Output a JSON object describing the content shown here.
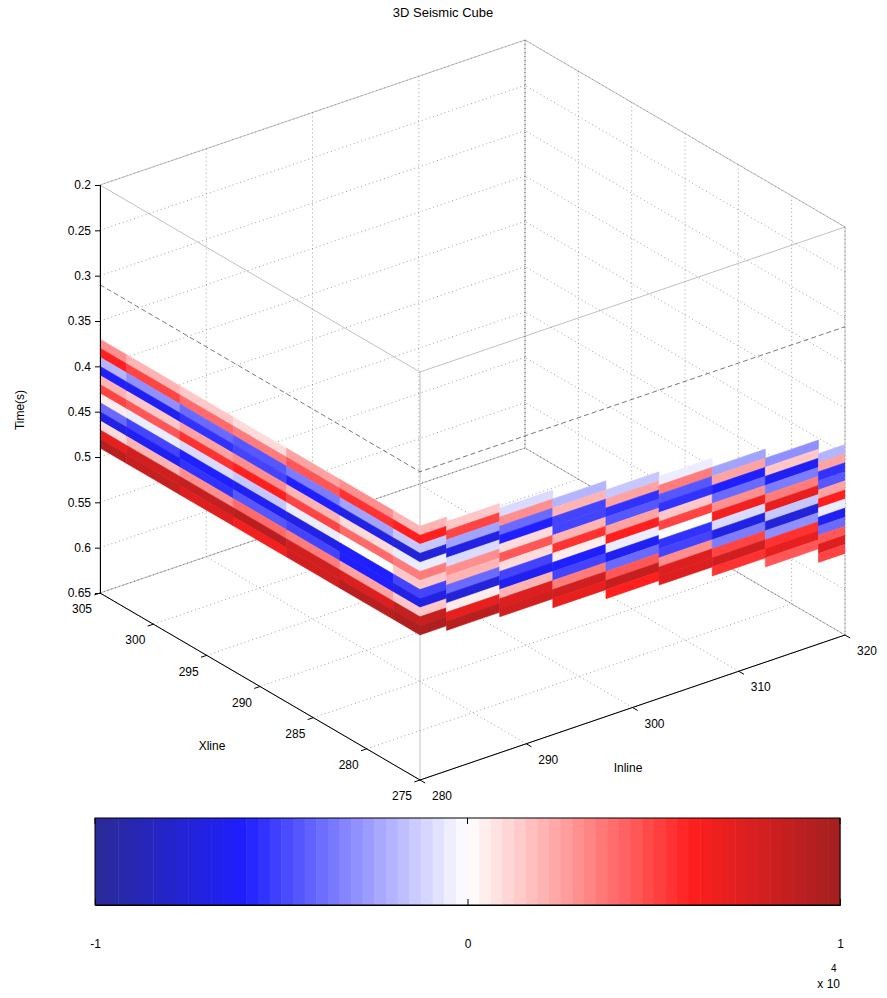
{
  "chart_data": {
    "type": "seismic_cube",
    "title": "3D Seismic Cube",
    "xlabel": "Xline",
    "ylabel": "Inline",
    "zlabel": "Time(s)",
    "xlim": [
      275,
      305
    ],
    "xticks": [
      275,
      280,
      285,
      290,
      295,
      300,
      305
    ],
    "ylim": [
      280,
      320
    ],
    "yticks": [
      280,
      290,
      300,
      310,
      320
    ],
    "zlim": [
      0.2,
      0.65
    ],
    "zticks": [
      0.2,
      0.25,
      0.3,
      0.35,
      0.4,
      0.45,
      0.5,
      0.55,
      0.6,
      0.65
    ],
    "grid": true,
    "slice_time": 0.31,
    "sample_interval": 0.01,
    "traces": [
      {
        "xline": 305,
        "inline": 280,
        "t_start": 0.37,
        "values": [
          3000,
          6000,
          -2000,
          -6000,
          2000,
          5000,
          500,
          -4000,
          -7000,
          1000,
          7000,
          9000
        ]
      },
      {
        "xline": 300,
        "inline": 280,
        "t_start": 0.37,
        "values": [
          2000,
          5000,
          -3000,
          -6500,
          1500,
          4500,
          -500,
          -5000,
          -6500,
          2000,
          8000,
          8500
        ]
      },
      {
        "xline": 295,
        "inline": 280,
        "t_start": 0.37,
        "values": [
          1500,
          4000,
          -4000,
          -5500,
          2500,
          5500,
          -1000,
          -6000,
          -5500,
          3000,
          8500,
          7500
        ]
      },
      {
        "xline": 290,
        "inline": 280,
        "t_start": 0.37,
        "values": [
          1000,
          3500,
          -4500,
          -5000,
          3000,
          6000,
          -1500,
          -6500,
          -4500,
          4000,
          9000,
          6500
        ]
      },
      {
        "xline": 285,
        "inline": 280,
        "t_start": 0.37,
        "values": [
          2500,
          4500,
          -3500,
          -6000,
          2000,
          5000,
          -500,
          -7000,
          -5000,
          3500,
          8000,
          8000
        ]
      },
      {
        "xline": 280,
        "inline": 280,
        "t_start": 0.37,
        "values": [
          3000,
          5500,
          -2500,
          -7000,
          1000,
          4000,
          0,
          -6000,
          -6000,
          2500,
          7500,
          9000
        ]
      },
      {
        "xline": 275,
        "inline": 280,
        "t_start": 0.37,
        "values": [
          2000,
          6000,
          -1500,
          -7500,
          -500,
          3500,
          1500,
          -5000,
          -7000,
          1500,
          8500,
          9500
        ]
      },
      {
        "xline": 275,
        "inline": 285,
        "t_start": 0.375,
        "values": [
          1500,
          5000,
          -2500,
          -7000,
          -1000,
          3000,
          2000,
          -4000,
          -7500,
          500,
          7000,
          9000
        ]
      },
      {
        "xline": 275,
        "inline": 290,
        "t_start": 0.38,
        "values": [
          -1000,
          3000,
          -4000,
          -6000,
          1000,
          4500,
          1000,
          -5000,
          -6500,
          2000,
          7500,
          8000
        ]
      },
      {
        "xline": 275,
        "inline": 295,
        "t_start": 0.39,
        "values": [
          -2000,
          2000,
          -5000,
          -5000,
          2000,
          5500,
          500,
          -6000,
          -5000,
          3500,
          8000,
          7000
        ]
      },
      {
        "xline": 275,
        "inline": 300,
        "t_start": 0.4,
        "values": [
          -1500,
          2500,
          -5500,
          -4500,
          2500,
          6000,
          -500,
          -6500,
          -4000,
          4500,
          8500,
          6000
        ]
      },
      {
        "xline": 275,
        "inline": 305,
        "t_start": 0.405,
        "values": [
          -500,
          3500,
          -4500,
          -5500,
          1500,
          5000,
          0,
          -5500,
          -5000,
          3000,
          7500,
          7500
        ]
      },
      {
        "xline": 275,
        "inline": 310,
        "t_start": 0.415,
        "values": [
          -2500,
          2500,
          -6000,
          -4000,
          3000,
          6500,
          -1000,
          -7000,
          -3500,
          5000,
          8000,
          5500
        ]
      },
      {
        "xline": 275,
        "inline": 315,
        "t_start": 0.425,
        "values": [
          -3000,
          1500,
          -6500,
          -3500,
          3500,
          7000,
          -1500,
          -7500,
          -3000,
          5500,
          7000,
          4500
        ]
      },
      {
        "xline": 275,
        "inline": 320,
        "t_start": 0.44,
        "values": [
          -2000,
          2500,
          -5500,
          -4500,
          2500,
          6000,
          -500,
          -6500,
          -4000,
          4500,
          7500,
          5000
        ]
      }
    ],
    "colorbar": {
      "lim": [
        -10000,
        10000
      ],
      "ticks": [
        {
          "value": -10000,
          "label": "-1"
        },
        0,
        {
          "value": 10000,
          "label": "1"
        }
      ],
      "scale_label": "x 10",
      "scale_exponent": "4",
      "color_stops": [
        {
          "value": -10000,
          "color": "#2a2a96"
        },
        {
          "value": -6000,
          "color": "#1f1fff"
        },
        {
          "value": 0,
          "color": "#ffffff"
        },
        {
          "value": 6000,
          "color": "#ff1f1f"
        },
        {
          "value": 10000,
          "color": "#a31f1f"
        }
      ]
    }
  }
}
